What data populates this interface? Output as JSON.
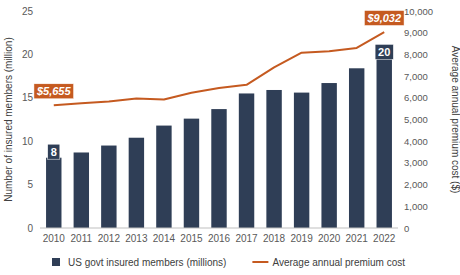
{
  "chart_data": {
    "type": "bar",
    "categories": [
      "2010",
      "2011",
      "2012",
      "2013",
      "2014",
      "2015",
      "2016",
      "2017",
      "2018",
      "2019",
      "2020",
      "2021",
      "2022"
    ],
    "series": [
      {
        "name": "US govt insured members (millions)",
        "type": "bar",
        "color": "#2f3e56",
        "values": [
          8.1,
          8.7,
          9.5,
          10.4,
          11.8,
          12.6,
          13.7,
          15.5,
          15.9,
          15.6,
          16.7,
          18.4,
          19.6
        ],
        "value_labels": [
          "8",
          null,
          null,
          null,
          null,
          null,
          null,
          null,
          null,
          null,
          null,
          null,
          "20"
        ]
      },
      {
        "name": "Average annual premium cost",
        "type": "line",
        "color": "#c55a20",
        "axis": "y2",
        "values": [
          5655,
          5750,
          5830,
          5970,
          5920,
          6230,
          6450,
          6600,
          7400,
          8080,
          8150,
          8300,
          9032
        ],
        "value_labels": [
          "$5,655",
          null,
          null,
          null,
          null,
          null,
          null,
          null,
          null,
          null,
          null,
          null,
          "$9,032"
        ]
      }
    ],
    "y_label": "Number of insured members (million)",
    "y2_label": "Average annual premium cost ($)",
    "ylim": [
      0,
      25
    ],
    "yticks": [
      0,
      5,
      10,
      15,
      20,
      25
    ],
    "y2lim": [
      0,
      10000
    ],
    "y2ticks": [
      0,
      {
        "value": 1000,
        "label": "1,000"
      },
      {
        "value": 2000,
        "label": "2,000"
      },
      {
        "value": 3000,
        "label": "3,000"
      },
      {
        "value": 4000,
        "label": "4,000"
      },
      {
        "value": 5000,
        "label": "5,000"
      },
      {
        "value": 6000,
        "label": "6,000"
      },
      {
        "value": 7000,
        "label": "7,000"
      },
      {
        "value": 8000,
        "label": "8,000"
      },
      {
        "value": 9000,
        "label": "9,000"
      },
      {
        "value": 10000,
        "label": "10,000"
      }
    ],
    "grid": false,
    "legend": "bottom",
    "data_labels": true
  }
}
